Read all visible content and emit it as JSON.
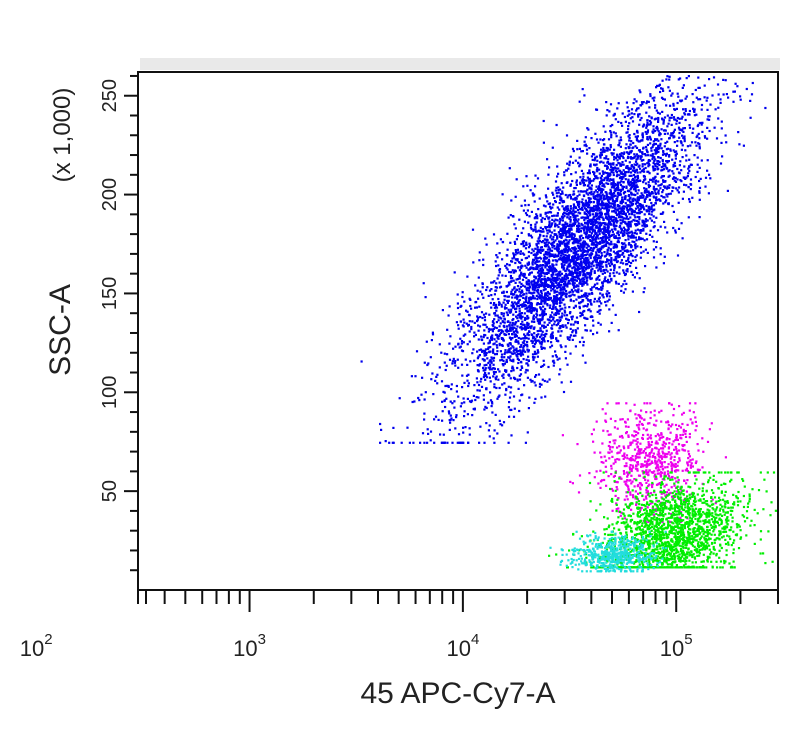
{
  "chart_data": {
    "type": "scatter",
    "title": "",
    "xlabel": "45 APC-Cy7-A",
    "ylabel": "SSC-A",
    "ylabel_multiplier": "(x 1,000)",
    "x_scale": "log",
    "xlim": [
      300,
      300000
    ],
    "ylim": [
      0,
      262
    ],
    "x_tick_labels": [
      {
        "value": 100,
        "base": "10",
        "exp": "2"
      },
      {
        "value": 1000,
        "base": "10",
        "exp": "3"
      },
      {
        "value": 10000,
        "base": "10",
        "exp": "4"
      },
      {
        "value": 100000,
        "base": "10",
        "exp": "5"
      }
    ],
    "y_ticks": [
      50,
      100,
      150,
      200,
      250
    ],
    "grid": false,
    "legend": "none",
    "series": [
      {
        "color": "#0000ee",
        "cluster": {
          "x_center": 35000,
          "x_spread": 0.16,
          "y_center": 175,
          "y_spread": 38,
          "y_min": 75,
          "y_max": 262,
          "slope": 0.006,
          "count": 5200
        }
      },
      {
        "color": "#ee00ee",
        "cluster": {
          "x_center": 75000,
          "x_spread": 0.12,
          "y_center": 65,
          "y_spread": 14,
          "y_min": 35,
          "y_max": 95,
          "slope": 0,
          "count": 700
        }
      },
      {
        "color": "#00ee00",
        "cluster": {
          "x_center": 95000,
          "x_spread": 0.16,
          "y_center": 30,
          "y_spread": 13,
          "y_min": 12,
          "y_max": 60,
          "slope": 0.0045,
          "count": 1800
        }
      },
      {
        "color": "#22dddd",
        "cluster": {
          "x_center": 50000,
          "x_spread": 0.1,
          "y_center": 18,
          "y_spread": 5,
          "y_min": 10,
          "y_max": 30,
          "slope": 0,
          "count": 500
        }
      }
    ]
  }
}
